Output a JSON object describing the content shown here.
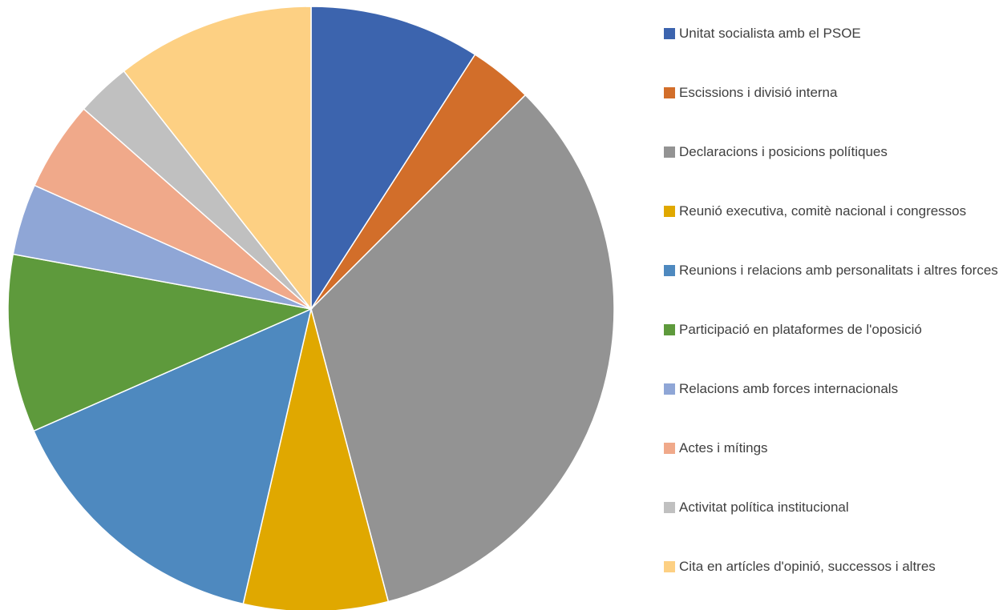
{
  "chart_data": {
    "type": "pie",
    "categories": [
      "Unitat socialista amb el PSOE",
      "Escissions i divisió interna",
      "Declaracions i posicions polítiques",
      "Reunió executiva, comitè nacional i congressos",
      "Reunions i relacions amb personalitats i altres forces",
      "Participació en plataformes de l'oposició",
      "Relacions amb forces internacionals",
      "Actes i mítings",
      "Activitat política institucional",
      "Cita en artícles d'opinió, successos i altres"
    ],
    "values": [
      9.1,
      3.4,
      33.4,
      7.7,
      14.8,
      9.5,
      3.8,
      4.8,
      2.9,
      10.6
    ],
    "colors": [
      "#3c64ae",
      "#d26e2a",
      "#939393",
      "#e0a800",
      "#4e89bf",
      "#5e9a3c",
      "#8fa6d6",
      "#f0a98a",
      "#c0c0c0",
      "#fdd083"
    ],
    "legend": "right"
  }
}
